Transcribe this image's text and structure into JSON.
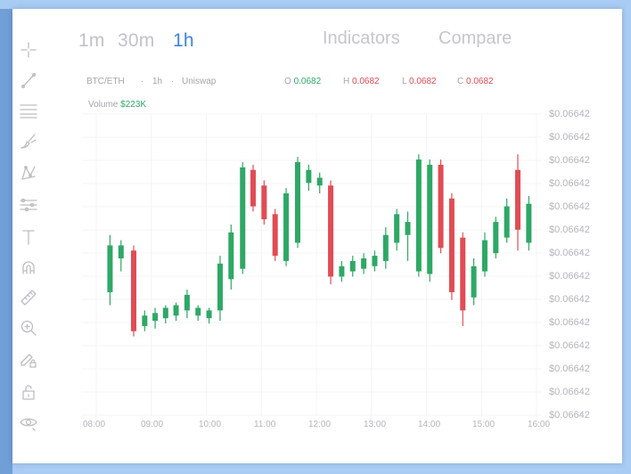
{
  "icons": [
    "crosshair-icon",
    "trend-line-icon",
    "horizontal-lines-icon",
    "brush-icon",
    "pattern-icon",
    "sliders-icon",
    "text-icon",
    "magnet-icon",
    "ruler-icon",
    "zoom-in-icon",
    "lock-drawing-icon",
    "lock-icon",
    "eye-icon"
  ],
  "timeframes": [
    {
      "label": "1m",
      "active": false
    },
    {
      "label": "30m",
      "active": false
    },
    {
      "label": "1h",
      "active": true
    }
  ],
  "header": {
    "indicators_label": "Indicators",
    "compare_label": "Compare"
  },
  "legend": {
    "pair": "BTC/ETH",
    "interval": "1h",
    "exchange": "Uniswap",
    "open_label": "O",
    "open_value": "0.0682",
    "high_label": "H",
    "high_value": "0.0682",
    "low_label": "L",
    "low_value": "0.0682",
    "close_label": "C",
    "close_value": "0.0682",
    "volume_label": "Volume",
    "volume_value": "$223K"
  },
  "colors": {
    "up": "#2ea866",
    "down": "#e14c55",
    "active": "#3f83e0",
    "muted": "#c2c2c7"
  },
  "chart_data": {
    "type": "candlestick",
    "y_tick_labels": [
      "$0.06642",
      "$0.06642",
      "$0.06642",
      "$0.06642",
      "$0.06642",
      "$0.06642",
      "$0.06642",
      "$0.06642",
      "$0.06642",
      "$0.06642",
      "$0.06642",
      "$0.06642",
      "$0.06642",
      "$0.06642"
    ],
    "x_tick_labels": [
      "08:00",
      "09:00",
      "10:00",
      "11:00",
      "12:00",
      "13:00",
      "14:00",
      "15:00",
      "16:00"
    ],
    "grid": true,
    "x_range": [
      0,
      8
    ],
    "y_range": [
      0,
      100
    ],
    "candles": [
      {
        "x": 0.25,
        "o": 37,
        "h": 59,
        "l": 32,
        "c": 55
      },
      {
        "x": 0.45,
        "o": 50,
        "h": 57,
        "l": 45,
        "c": 55
      },
      {
        "x": 0.68,
        "o": 53,
        "h": 55,
        "l": 20,
        "c": 22
      },
      {
        "x": 0.88,
        "o": 24,
        "h": 30,
        "l": 22,
        "c": 28
      },
      {
        "x": 1.07,
        "o": 26,
        "h": 31,
        "l": 23,
        "c": 29
      },
      {
        "x": 1.26,
        "o": 27,
        "h": 32,
        "l": 25,
        "c": 31
      },
      {
        "x": 1.45,
        "o": 28,
        "h": 33,
        "l": 26,
        "c": 32
      },
      {
        "x": 1.65,
        "o": 30,
        "h": 38,
        "l": 27,
        "c": 36
      },
      {
        "x": 1.85,
        "o": 28,
        "h": 32,
        "l": 26,
        "c": 31
      },
      {
        "x": 2.05,
        "o": 27,
        "h": 31,
        "l": 25,
        "c": 30
      },
      {
        "x": 2.25,
        "o": 30,
        "h": 51,
        "l": 26,
        "c": 48
      },
      {
        "x": 2.45,
        "o": 42,
        "h": 63,
        "l": 38,
        "c": 60
      },
      {
        "x": 2.66,
        "o": 46,
        "h": 87,
        "l": 44,
        "c": 85
      },
      {
        "x": 2.85,
        "o": 84,
        "h": 86,
        "l": 68,
        "c": 70
      },
      {
        "x": 3.05,
        "o": 78,
        "h": 80,
        "l": 63,
        "c": 65
      },
      {
        "x": 3.25,
        "o": 67,
        "h": 69,
        "l": 49,
        "c": 51
      },
      {
        "x": 3.45,
        "o": 49,
        "h": 77,
        "l": 47,
        "c": 75
      },
      {
        "x": 3.66,
        "o": 56,
        "h": 89,
        "l": 54,
        "c": 87
      },
      {
        "x": 3.86,
        "o": 79,
        "h": 86,
        "l": 76,
        "c": 84
      },
      {
        "x": 4.06,
        "o": 78,
        "h": 83,
        "l": 75,
        "c": 81
      },
      {
        "x": 4.26,
        "o": 78,
        "h": 80,
        "l": 40,
        "c": 43
      },
      {
        "x": 4.46,
        "o": 43,
        "h": 49,
        "l": 41,
        "c": 47
      },
      {
        "x": 4.66,
        "o": 45,
        "h": 51,
        "l": 43,
        "c": 49
      },
      {
        "x": 4.86,
        "o": 46,
        "h": 52,
        "l": 44,
        "c": 50
      },
      {
        "x": 5.06,
        "o": 47,
        "h": 53,
        "l": 45,
        "c": 51
      },
      {
        "x": 5.26,
        "o": 49,
        "h": 62,
        "l": 46,
        "c": 59
      },
      {
        "x": 5.46,
        "o": 56,
        "h": 69,
        "l": 53,
        "c": 67
      },
      {
        "x": 5.66,
        "o": 59,
        "h": 68,
        "l": 49,
        "c": 64
      },
      {
        "x": 5.86,
        "o": 45,
        "h": 90,
        "l": 43,
        "c": 88
      },
      {
        "x": 6.06,
        "o": 44,
        "h": 88,
        "l": 41,
        "c": 86
      },
      {
        "x": 6.26,
        "o": 86,
        "h": 88,
        "l": 52,
        "c": 54
      },
      {
        "x": 6.46,
        "o": 73,
        "h": 75,
        "l": 34,
        "c": 37
      },
      {
        "x": 6.66,
        "o": 58,
        "h": 60,
        "l": 24,
        "c": 30
      },
      {
        "x": 6.86,
        "o": 35,
        "h": 50,
        "l": 32,
        "c": 47
      },
      {
        "x": 7.06,
        "o": 45,
        "h": 60,
        "l": 43,
        "c": 57
      },
      {
        "x": 7.26,
        "o": 52,
        "h": 66,
        "l": 50,
        "c": 64
      },
      {
        "x": 7.46,
        "o": 58,
        "h": 73,
        "l": 56,
        "c": 70
      },
      {
        "x": 7.66,
        "o": 84,
        "h": 90,
        "l": 53,
        "c": 61
      },
      {
        "x": 7.86,
        "o": 56,
        "h": 74,
        "l": 53,
        "c": 71
      }
    ]
  }
}
